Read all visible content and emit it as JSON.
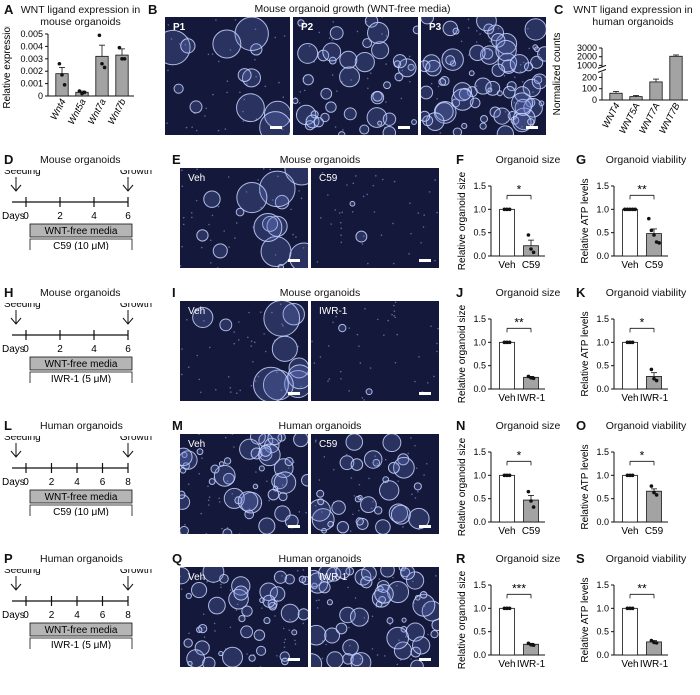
{
  "panels": {
    "A": {
      "letter": "A",
      "title": "WNT ligand expression in mouse organoids"
    },
    "B": {
      "letter": "B",
      "title": "Mouse organoid growth (WNT-free media)",
      "images": [
        "P1",
        "P2",
        "P3"
      ]
    },
    "C": {
      "letter": "C",
      "title": "WNT ligand expression in human organoids"
    },
    "D": {
      "letter": "D",
      "title": "Mouse organoids",
      "start": "Seeding",
      "end": "Growth",
      "days_label": "Days",
      "ticks": [
        "0",
        "2",
        "4",
        "6"
      ],
      "media": "WNT-free media",
      "drug": "C59 (10 μM)"
    },
    "E": {
      "letter": "E",
      "title": "Mouse organoids",
      "left": "Veh",
      "right": "C59"
    },
    "F": {
      "letter": "F",
      "title": "Organoid size"
    },
    "G": {
      "letter": "G",
      "title": "Organoid viability"
    },
    "H": {
      "letter": "H",
      "title": "Mouse organoids",
      "start": "Seeding",
      "end": "Growth",
      "days_label": "Days",
      "ticks": [
        "0",
        "2",
        "4",
        "6"
      ],
      "media": "WNT-free media",
      "drug": "IWR-1 (5 μM)"
    },
    "I": {
      "letter": "I",
      "title": "Mouse organoids",
      "left": "Veh",
      "right": "IWR-1"
    },
    "J": {
      "letter": "J",
      "title": "Organoid size"
    },
    "K": {
      "letter": "K",
      "title": "Organoid viability"
    },
    "L": {
      "letter": "L",
      "title": "Human organoids",
      "start": "Seeding",
      "end": "Growth",
      "days_label": "Days",
      "ticks": [
        "0",
        "2",
        "4",
        "6",
        "8"
      ],
      "media": "WNT-free media",
      "drug": "C59 (10 μM)"
    },
    "M": {
      "letter": "M",
      "title": "Human organoids",
      "left": "Veh",
      "right": "C59"
    },
    "N": {
      "letter": "N",
      "title": "Organoid size"
    },
    "O": {
      "letter": "O",
      "title": "Organoid viability"
    },
    "P": {
      "letter": "P",
      "title": "Human organoids",
      "start": "Seeding",
      "end": "Growth",
      "days_label": "Days",
      "ticks": [
        "0",
        "2",
        "4",
        "6",
        "8"
      ],
      "media": "WNT-free media",
      "drug": "IWR-1 (5 μM)"
    },
    "Q": {
      "letter": "Q",
      "title": "Human organoids",
      "left": "Veh",
      "right": "IWR-1"
    },
    "R": {
      "letter": "R",
      "title": "Organoid size"
    },
    "S": {
      "letter": "S",
      "title": "Organoid viability"
    }
  },
  "chart_data": [
    {
      "id": "A",
      "type": "bar",
      "ylabel": "Relative expression",
      "categories": [
        "Wnt4",
        "Wnt5a",
        "Wnt7a",
        "Wnt7b"
      ],
      "values": [
        0.0018,
        0.0003,
        0.0032,
        0.0033
      ],
      "errors": [
        0.0005,
        0.0001,
        0.0009,
        0.0005
      ],
      "points": [
        [
          0.0026,
          0.0017,
          0.0009
        ],
        [
          0.0004,
          0.0002,
          0.0003
        ],
        [
          0.0049,
          0.0026,
          0.0023
        ],
        [
          0.0039,
          0.003,
          0.003
        ]
      ],
      "ylim": [
        0,
        0.005
      ],
      "yticks": [
        "0",
        "0.001",
        "0.002",
        "0.003",
        "0.004",
        "0.005"
      ],
      "italic": true
    },
    {
      "id": "C",
      "type": "bar",
      "ylabel": "Normalized counts",
      "categories": [
        "WNT4",
        "WNT5A",
        "WNT7A",
        "WNT7B"
      ],
      "values": [
        60,
        30,
        160,
        2050
      ],
      "errors": [
        15,
        10,
        25,
        150
      ],
      "ylim": [
        0,
        3000
      ],
      "yticks": [
        "0",
        "100",
        "200",
        "1000",
        "2000",
        "3000"
      ],
      "broken_axis": true,
      "italic": true
    },
    {
      "id": "F",
      "type": "bar",
      "ylabel": "Relative organoid size",
      "categories": [
        "Veh",
        "C59"
      ],
      "values": [
        1.0,
        0.22
      ],
      "errors": [
        0,
        0.12
      ],
      "points": [
        [
          1,
          1,
          1
        ],
        [
          0.45,
          0.15,
          0.08
        ]
      ],
      "ylim": [
        0,
        1.5
      ],
      "yticks": [
        "0.0",
        "0.5",
        "1.0",
        "1.5"
      ],
      "significance": "*"
    },
    {
      "id": "G",
      "type": "bar",
      "ylabel": "Relative ATP levels",
      "categories": [
        "Veh",
        "C59"
      ],
      "values": [
        1.0,
        0.48
      ],
      "errors": [
        0,
        0.1
      ],
      "points": [
        [
          1,
          1,
          1,
          1,
          1
        ],
        [
          0.8,
          0.55,
          0.45,
          0.3,
          0.28
        ]
      ],
      "ylim": [
        0,
        1.5
      ],
      "yticks": [
        "0.0",
        "0.5",
        "1.0",
        "1.5"
      ],
      "significance": "**"
    },
    {
      "id": "J",
      "type": "bar",
      "ylabel": "Relative organoid size",
      "categories": [
        "Veh",
        "IWR-1"
      ],
      "values": [
        1.0,
        0.25
      ],
      "errors": [
        0,
        0.02
      ],
      "points": [
        [
          1,
          1,
          1
        ],
        [
          0.27,
          0.24,
          0.23
        ]
      ],
      "ylim": [
        0,
        1.5
      ],
      "yticks": [
        "0.0",
        "0.5",
        "1.0",
        "1.5"
      ],
      "significance": "**"
    },
    {
      "id": "K",
      "type": "bar",
      "ylabel": "Relative ATP levels",
      "categories": [
        "Veh",
        "IWR-1"
      ],
      "values": [
        1.0,
        0.27
      ],
      "errors": [
        0,
        0.08
      ],
      "points": [
        [
          1,
          1,
          1
        ],
        [
          0.42,
          0.22,
          0.18
        ]
      ],
      "ylim": [
        0,
        1.5
      ],
      "yticks": [
        "0.0",
        "0.5",
        "1.0",
        "1.5"
      ],
      "significance": "*"
    },
    {
      "id": "N",
      "type": "bar",
      "ylabel": "Relative organoid size",
      "categories": [
        "Veh",
        "C59"
      ],
      "values": [
        1.0,
        0.47
      ],
      "errors": [
        0,
        0.1
      ],
      "points": [
        [
          1,
          1,
          1
        ],
        [
          0.65,
          0.45,
          0.32
        ]
      ],
      "ylim": [
        0,
        1.5
      ],
      "yticks": [
        "0.0",
        "0.5",
        "1.0",
        "1.5"
      ],
      "significance": "*"
    },
    {
      "id": "O",
      "type": "bar",
      "ylabel": "Relative ATP levels",
      "categories": [
        "Veh",
        "C59"
      ],
      "values": [
        1.0,
        0.66
      ],
      "errors": [
        0,
        0.05
      ],
      "points": [
        [
          1,
          1,
          1
        ],
        [
          0.77,
          0.63,
          0.58
        ]
      ],
      "ylim": [
        0,
        1.5
      ],
      "yticks": [
        "0.0",
        "0.5",
        "1.0",
        "1.5"
      ],
      "significance": "*"
    },
    {
      "id": "R",
      "type": "bar",
      "ylabel": "Relative organoid size",
      "categories": [
        "Veh",
        "IWR-1"
      ],
      "values": [
        1.0,
        0.23
      ],
      "errors": [
        0,
        0.02
      ],
      "points": [
        [
          1,
          1,
          1
        ],
        [
          0.25,
          0.22,
          0.21
        ]
      ],
      "ylim": [
        0,
        1.5
      ],
      "yticks": [
        "0.0",
        "0.5",
        "1.0",
        "1.5"
      ],
      "significance": "***"
    },
    {
      "id": "S",
      "type": "bar",
      "ylabel": "Relative ATP levels",
      "categories": [
        "Veh",
        "IWR-1"
      ],
      "values": [
        1.0,
        0.28
      ],
      "errors": [
        0,
        0.03
      ],
      "points": [
        [
          1,
          1,
          1
        ],
        [
          0.31,
          0.27,
          0.26
        ]
      ],
      "ylim": [
        0,
        1.5
      ],
      "yticks": [
        "0.0",
        "0.5",
        "1.0",
        "1.5"
      ],
      "significance": "**"
    }
  ],
  "colors": {
    "bar_gray": "#a3a3a3",
    "bar_white": "#ffffff",
    "micro_bg": "#14183a",
    "organoid": "#c9d6ff"
  }
}
